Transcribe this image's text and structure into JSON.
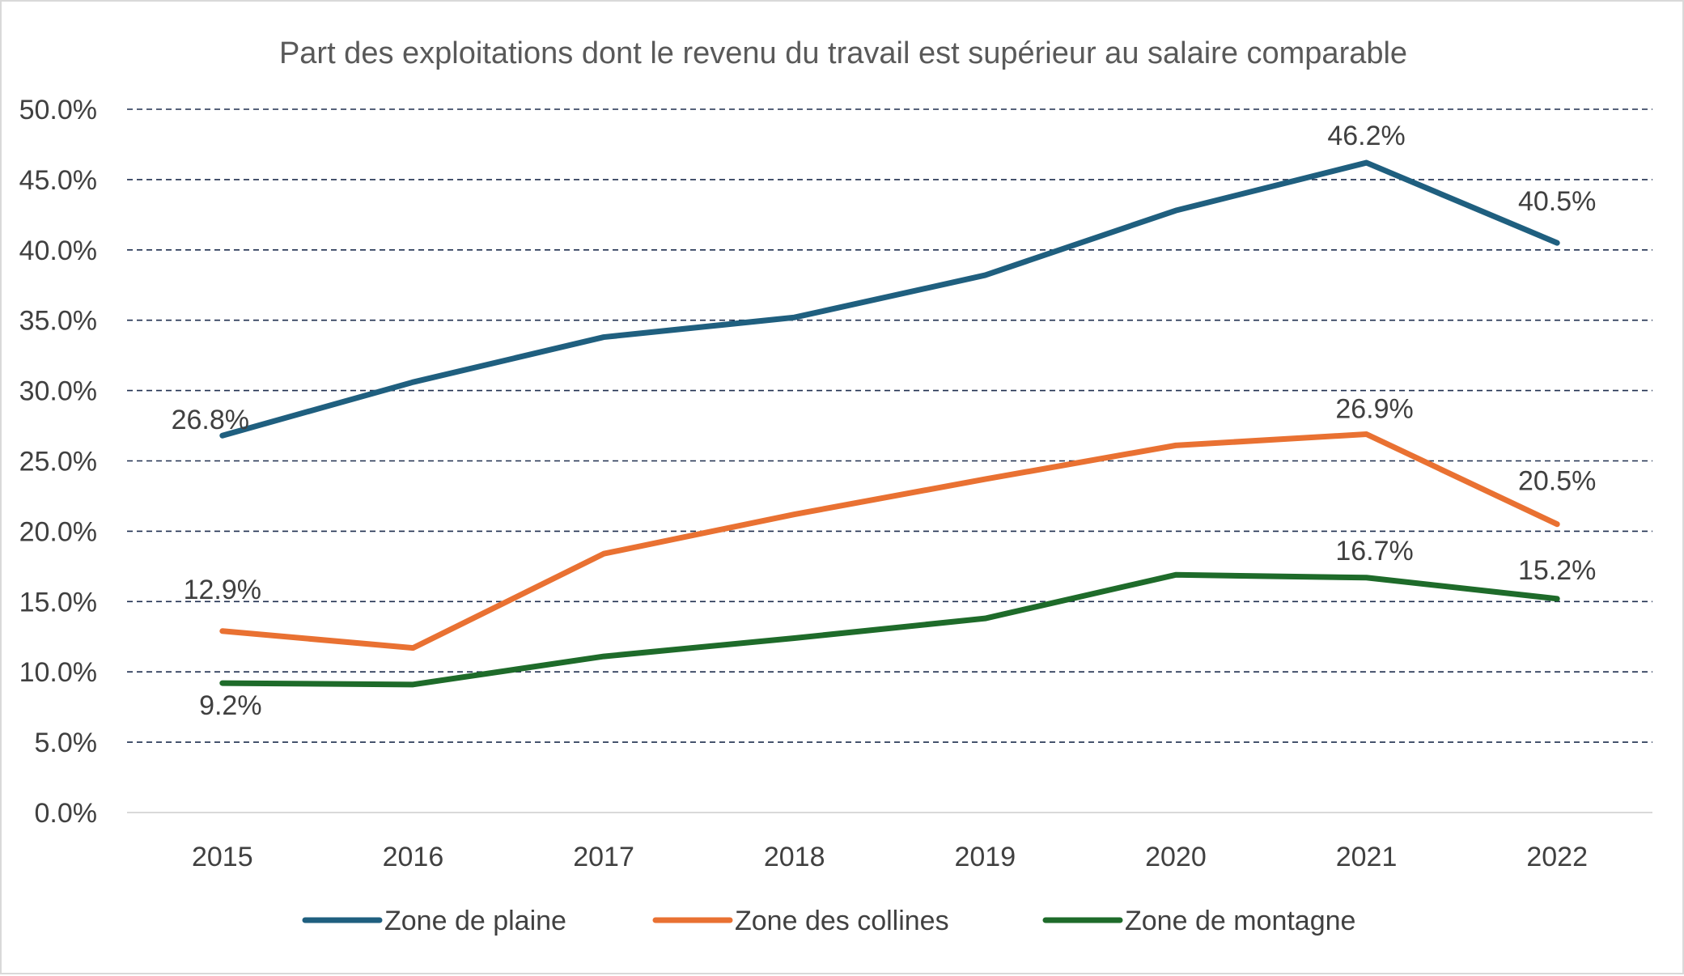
{
  "chart_data": {
    "type": "line",
    "title": "Part des exploitations dont le revenu du travail est supérieur au salaire comparable",
    "xlabel": "",
    "ylabel": "",
    "categories": [
      "2015",
      "2016",
      "2017",
      "2018",
      "2019",
      "2020",
      "2021",
      "2022"
    ],
    "ylim": [
      0,
      50
    ],
    "y_ticks": [
      "0.0%",
      "5.0%",
      "10.0%",
      "15.0%",
      "20.0%",
      "25.0%",
      "30.0%",
      "35.0%",
      "40.0%",
      "45.0%",
      "50.0%"
    ],
    "grid": "horizontal dashed",
    "legend_position": "bottom",
    "series": [
      {
        "name": "Zone de plaine",
        "color": "#1f5f7f",
        "values": [
          26.8,
          30.6,
          33.8,
          35.2,
          38.2,
          42.8,
          46.2,
          40.5
        ],
        "data_labels": [
          {
            "index": 0,
            "text": "26.8%"
          },
          {
            "index": 6,
            "text": "46.2%"
          },
          {
            "index": 7,
            "text": "40.5%"
          }
        ]
      },
      {
        "name": "Zone des collines",
        "color": "#e97132",
        "values": [
          12.9,
          11.7,
          18.4,
          21.2,
          23.7,
          26.1,
          26.9,
          20.5
        ],
        "data_labels": [
          {
            "index": 0,
            "text": "12.9%"
          },
          {
            "index": 6,
            "text": "26.9%"
          },
          {
            "index": 7,
            "text": "20.5%"
          }
        ]
      },
      {
        "name": "Zone de montagne",
        "color": "#1e6b2a",
        "values": [
          9.2,
          9.1,
          11.1,
          12.4,
          13.8,
          16.9,
          16.7,
          15.2
        ],
        "data_labels": [
          {
            "index": 0,
            "text": "9.2%"
          },
          {
            "index": 6,
            "text": "16.7%"
          },
          {
            "index": 7,
            "text": "15.2%"
          }
        ]
      }
    ]
  }
}
